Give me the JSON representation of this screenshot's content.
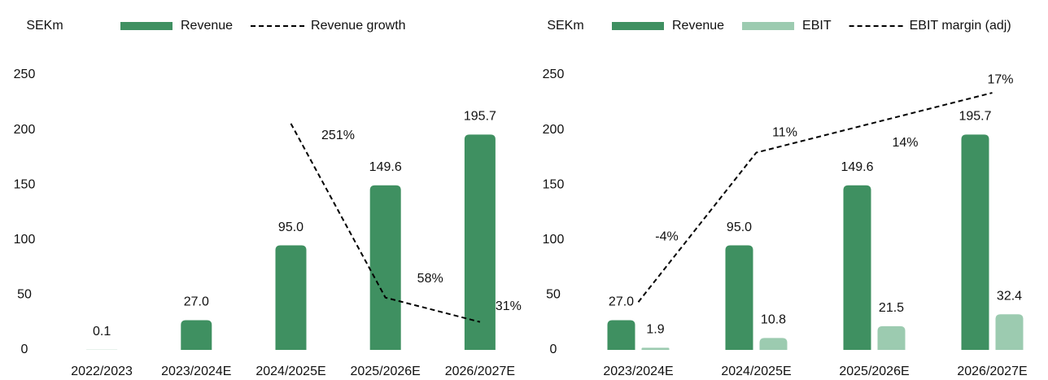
{
  "chart_data": [
    {
      "type": "bar",
      "ylabel": "SEKm",
      "categories": [
        "2022/2023",
        "2023/2024E",
        "2024/2025E",
        "2025/2026E",
        "2026/2027E"
      ],
      "series": [
        {
          "name": "Revenue",
          "type": "bar",
          "color": "#3f9061",
          "values": [
            0.1,
            27.0,
            95.0,
            149.6,
            195.7
          ],
          "value_labels": [
            "0.1",
            "27.0",
            "95.0",
            "149.6",
            "195.7"
          ]
        },
        {
          "name": "Revenue growth",
          "type": "line",
          "axis": "y2",
          "color": "#000000",
          "values": [
            null,
            null,
            251,
            58,
            31
          ],
          "value_labels": [
            null,
            null,
            "251%",
            "58%",
            "31%"
          ]
        }
      ],
      "ylim": [
        0,
        250
      ],
      "yticks": [
        0,
        50,
        100,
        150,
        200,
        250
      ],
      "y2lim": [
        0,
        305
      ]
    },
    {
      "type": "bar",
      "ylabel": "SEKm",
      "categories": [
        "2023/2024E",
        "2024/2025E",
        "2025/2026E",
        "2026/2027E"
      ],
      "series": [
        {
          "name": "Revenue",
          "type": "bar",
          "color": "#3f9061",
          "values": [
            27.0,
            95.0,
            149.6,
            195.7
          ],
          "value_labels": [
            "27.0",
            "95.0",
            "149.6",
            "195.7"
          ]
        },
        {
          "name": "EBIT",
          "type": "bar",
          "color": "#9ccbb0",
          "values": [
            1.9,
            10.8,
            21.5,
            32.4
          ]
        },
        {
          "name": "EBIT margin (adj)",
          "type": "line",
          "axis": "y2",
          "color": "#000000",
          "values": [
            -4,
            11,
            14,
            17
          ],
          "value_labels": [
            "-4%",
            "11%",
            "14%",
            "17%"
          ]
        }
      ],
      "ylim": [
        0,
        250
      ],
      "yticks": [
        0,
        50,
        100,
        150,
        200,
        250
      ],
      "y2lim": [
        -8.8,
        18.8
      ]
    }
  ]
}
